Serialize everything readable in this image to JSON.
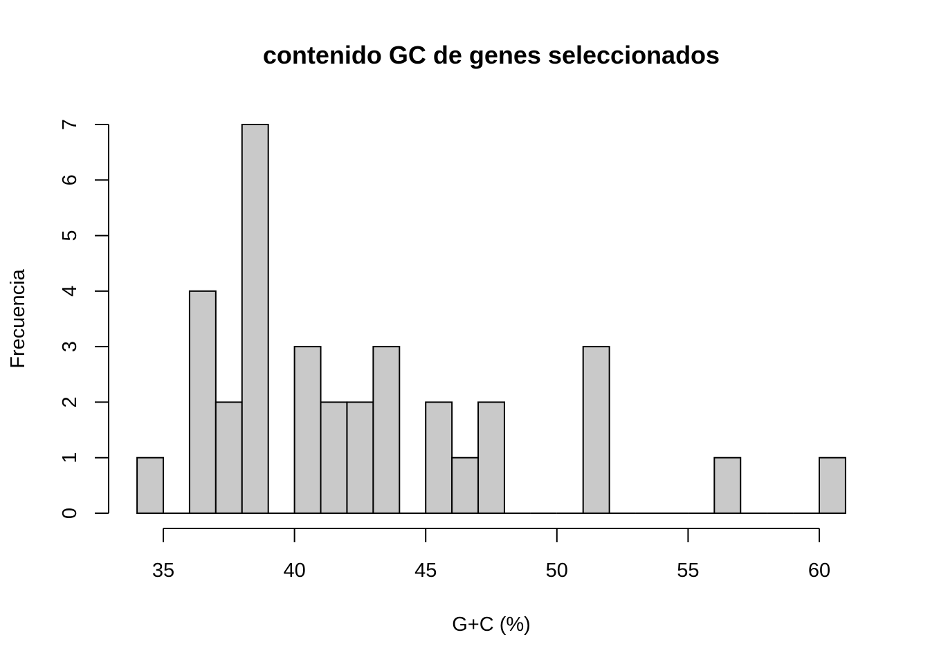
{
  "chart_data": {
    "type": "bar",
    "title": "contenido GC de genes seleccionados",
    "xlabel": "G+C (%)",
    "ylabel": "Frecuencia",
    "bin_edges": [
      34,
      35,
      36,
      37,
      38,
      39,
      40,
      41,
      42,
      43,
      44,
      45,
      46,
      47,
      48,
      49,
      50,
      51,
      52,
      53,
      54,
      55,
      56,
      57,
      58,
      59,
      60,
      61
    ],
    "values": [
      1,
      0,
      4,
      2,
      7,
      0,
      3,
      2,
      2,
      3,
      0,
      2,
      1,
      2,
      0,
      0,
      0,
      3,
      0,
      0,
      0,
      0,
      1,
      0,
      0,
      0,
      1
    ],
    "xlim": [
      34,
      61
    ],
    "ylim": [
      0,
      7
    ],
    "xticks": [
      "35",
      "40",
      "45",
      "50",
      "55",
      "60"
    ],
    "yticks": [
      "0",
      "1",
      "2",
      "3",
      "4",
      "5",
      "6",
      "7"
    ],
    "grid": false,
    "legend": "none",
    "bar_color": "#c9c9c9",
    "edge_color": "#000000"
  }
}
